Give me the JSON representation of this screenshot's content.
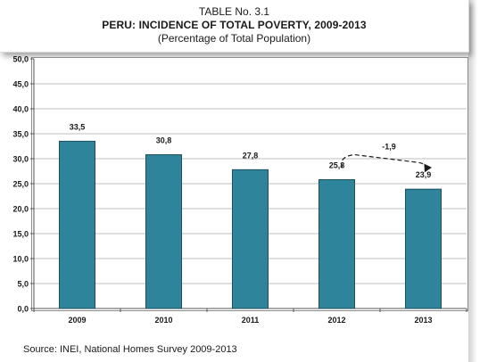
{
  "title": {
    "line1": "TABLE No. 3.1",
    "line2": "PERU: INCIDENCE OF TOTAL POVERTY, 2009-2013",
    "line3": "(Percentage of Total Population)"
  },
  "source": "Source: INEI, National Homes Survey 2009-2013",
  "colors": {
    "bar": "#2E849A",
    "bar_edge": "#1d4f5e",
    "grid": "#bfbfbf",
    "annotation": "#1a1a1a"
  },
  "chart_data": {
    "type": "bar",
    "title": "PERU: INCIDENCE OF TOTAL POVERTY, 2009-2013",
    "subtitle": "(Percentage of Total Population)",
    "categories": [
      "2009",
      "2010",
      "2011",
      "2012",
      "2013"
    ],
    "values": [
      33.5,
      30.8,
      27.8,
      25.8,
      23.9
    ],
    "value_labels": [
      "33,5",
      "30,8",
      "27,8",
      "25,8",
      "23,9"
    ],
    "ylim": [
      0,
      50
    ],
    "yticks": [
      0,
      5,
      10,
      15,
      20,
      25,
      30,
      35,
      40,
      45,
      50
    ],
    "ytick_labels": [
      "0,0",
      "5,0",
      "10,0",
      "15,0",
      "20,0",
      "25,0",
      "30,0",
      "35,0",
      "40,0",
      "45,0",
      "50,0"
    ],
    "grid": true,
    "legend": "none",
    "annotation": {
      "text": "-1,9",
      "from_category": "2012",
      "to_category": "2013",
      "style": "dashed-arrow"
    }
  }
}
